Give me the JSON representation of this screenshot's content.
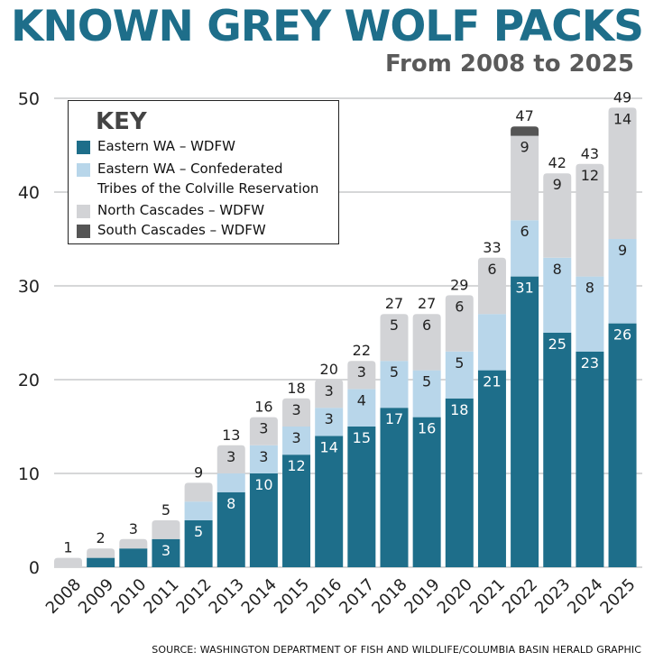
{
  "title": "KNOWN GREY WOLF PACKS",
  "subtitle": "From 2008 to 2025",
  "legend": {
    "title": "KEY",
    "items": [
      {
        "label": "Eastern WA – WDFW",
        "color": "#1e6e8a"
      },
      {
        "label": "Eastern WA – Confederated\nTribes of the Colville Reservation",
        "color": "#b8d6ea"
      },
      {
        "label": "North Cascades – WDFW",
        "color": "#d2d3d6"
      },
      {
        "label": "South Cascades – WDFW",
        "color": "#555555"
      }
    ]
  },
  "source": "SOURCE: WASHINGTON DEPARTMENT OF FISH AND WILDLIFE/COLUMBIA BASIN HERALD GRAPHIC",
  "chart_data": {
    "type": "bar",
    "stacked": true,
    "categories": [
      "2008",
      "2009",
      "2010",
      "2011",
      "2012",
      "2013",
      "2014",
      "2015",
      "2016",
      "2017",
      "2018",
      "2019",
      "2020",
      "2021",
      "2022",
      "2023",
      "2024",
      "2025"
    ],
    "series": [
      {
        "name": "Eastern WA – WDFW",
        "color": "#1e6e8a",
        "values": [
          0,
          1,
          2,
          3,
          5,
          8,
          10,
          12,
          14,
          15,
          17,
          16,
          18,
          21,
          31,
          25,
          23,
          26
        ],
        "labels": [
          "",
          "",
          "",
          "3",
          "5",
          "8",
          "10",
          "12",
          "14",
          "15",
          "17",
          "16",
          "18",
          "21",
          "31",
          "25",
          "23",
          "26"
        ]
      },
      {
        "name": "Eastern WA – Confederated Tribes of the Colville Reservation",
        "color": "#b8d6ea",
        "values": [
          0,
          0,
          0,
          0,
          2,
          2,
          3,
          3,
          3,
          4,
          5,
          5,
          5,
          6,
          6,
          8,
          8,
          9
        ],
        "labels": [
          "",
          "",
          "",
          "",
          "",
          "",
          "3",
          "3",
          "3",
          "4",
          "5",
          "5",
          "5",
          "",
          "6",
          "8",
          "8",
          "9"
        ]
      },
      {
        "name": "North Cascades – WDFW",
        "color": "#d2d3d6",
        "values": [
          1,
          1,
          1,
          2,
          2,
          3,
          3,
          3,
          3,
          3,
          5,
          6,
          6,
          6,
          9,
          9,
          12,
          14
        ],
        "labels": [
          "",
          "",
          "",
          "",
          "",
          "3",
          "3",
          "3",
          "3",
          "3",
          "5",
          "6",
          "6",
          "6",
          "9",
          "9",
          "12",
          "14"
        ]
      },
      {
        "name": "South Cascades – WDFW",
        "color": "#555555",
        "values": [
          0,
          0,
          0,
          0,
          0,
          0,
          0,
          0,
          0,
          0,
          0,
          0,
          0,
          0,
          1,
          0,
          0,
          0
        ],
        "labels": [
          "",
          "",
          "",
          "",
          "",
          "",
          "",
          "",
          "",
          "",
          "",
          "",
          "",
          "",
          "",
          "",
          "",
          ""
        ]
      }
    ],
    "totals": [
      1,
      2,
      3,
      5,
      9,
      13,
      16,
      18,
      20,
      22,
      27,
      27,
      29,
      33,
      47,
      42,
      43,
      49
    ],
    "ylim": [
      0,
      50
    ],
    "yticks": [
      0,
      10,
      20,
      30,
      40,
      50
    ],
    "grid": true,
    "legend_position": "top-left"
  }
}
